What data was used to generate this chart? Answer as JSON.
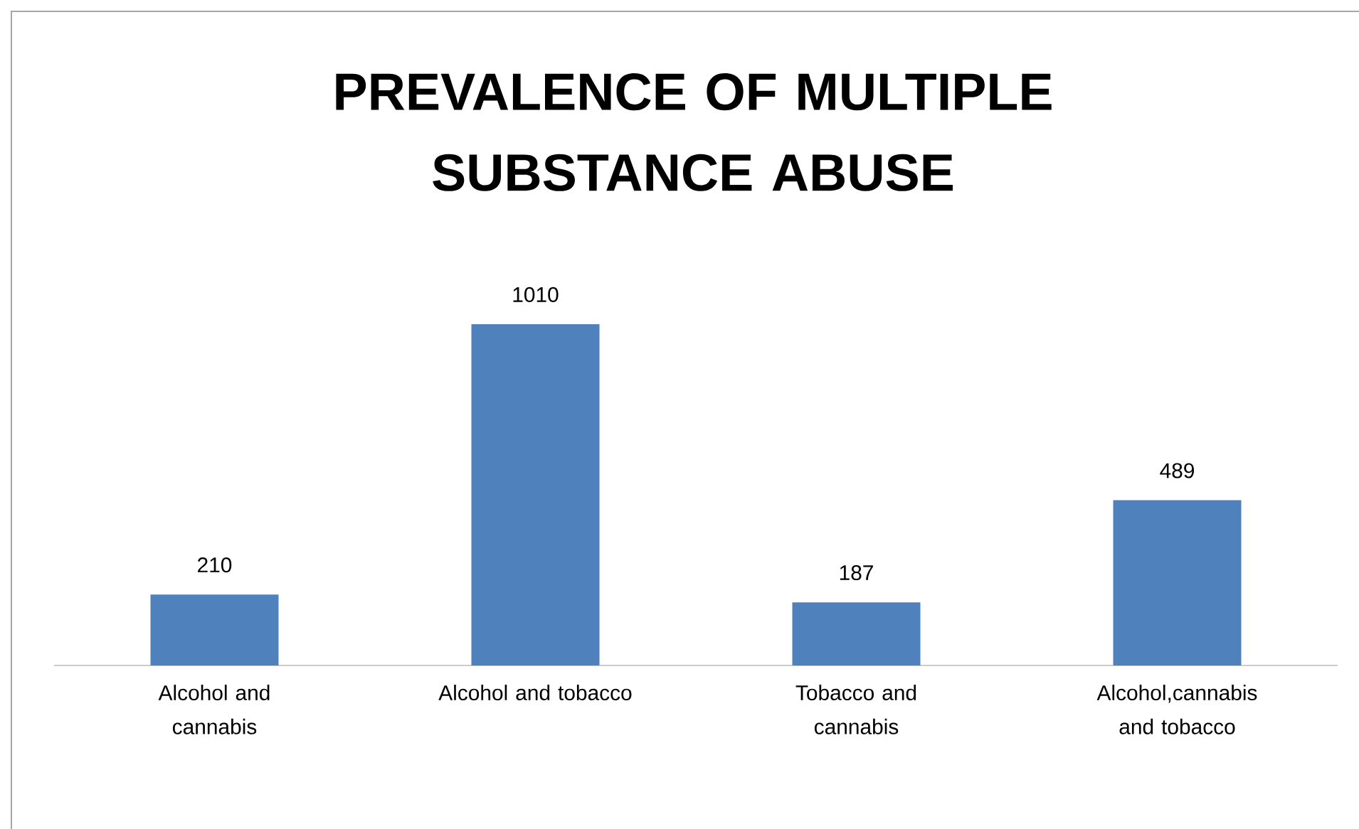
{
  "chart_data": {
    "type": "bar",
    "title": "PREVALENCE OF MULTIPLE SUBSTANCE ABUSE",
    "categories": [
      "Alcohol and cannabis",
      "Alcohol and tobacco",
      "Tobacco and cannabis",
      "Alcohol,cannabis and tobacco"
    ],
    "values": [
      210,
      1010,
      187,
      489
    ],
    "color": "#4f81bd",
    "data_labels": true,
    "tick_labels": "x"
  }
}
